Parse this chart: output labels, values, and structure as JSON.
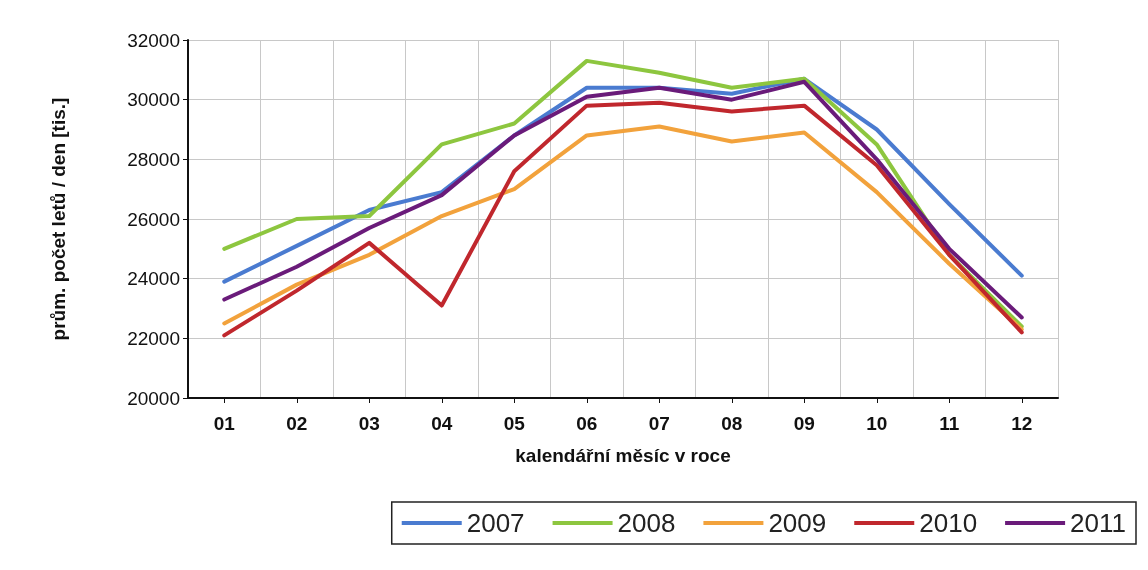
{
  "chart_data": {
    "type": "line",
    "xlabel": "kalendářní měsíc v roce",
    "ylabel": "prům. počet letů / den [tis.]",
    "categories": [
      "01",
      "02",
      "03",
      "04",
      "05",
      "06",
      "07",
      "08",
      "09",
      "10",
      "11",
      "12"
    ],
    "ylim": [
      20000,
      32000
    ],
    "yticks": [
      20000,
      22000,
      24000,
      26000,
      28000,
      30000,
      32000
    ],
    "grid": true,
    "legend": "bottom",
    "marker": "none",
    "line_style": "solid",
    "series": [
      {
        "name": "2007",
        "color": "#4a7bd0",
        "values": [
          23900,
          25100,
          26300,
          26900,
          28800,
          30400,
          30400,
          30200,
          30700,
          29000,
          26500,
          24100
        ]
      },
      {
        "name": "2008",
        "color": "#8dc63f",
        "values": [
          25000,
          26000,
          26100,
          28500,
          29200,
          31300,
          30900,
          30400,
          30700,
          28500,
          24800,
          22400
        ]
      },
      {
        "name": "2009",
        "color": "#f2a23c",
        "values": [
          22500,
          23800,
          24800,
          26100,
          27000,
          28800,
          29100,
          28600,
          28900,
          26900,
          24500,
          22300
        ]
      },
      {
        "name": "2010",
        "color": "#c0272d",
        "values": [
          22100,
          23600,
          25200,
          23100,
          27600,
          29800,
          29900,
          29600,
          29800,
          27800,
          24800,
          22200
        ]
      },
      {
        "name": "2011",
        "color": "#6a1b7a",
        "values": [
          23300,
          24400,
          25700,
          26800,
          28800,
          30100,
          30400,
          30000,
          30600,
          28000,
          25000,
          22700
        ]
      }
    ]
  }
}
